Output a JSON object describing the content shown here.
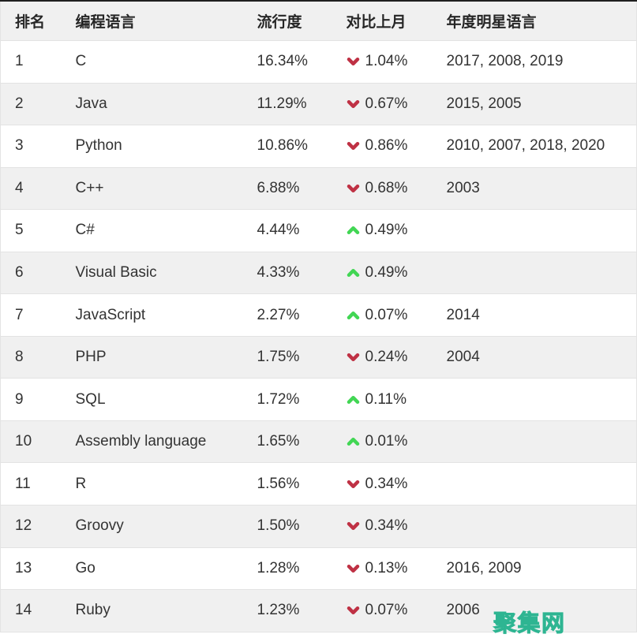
{
  "chart_data": {
    "type": "table",
    "columns": [
      "排名",
      "编程语言",
      "流行度",
      "对比上月",
      "年度明星语言"
    ],
    "rows": [
      {
        "rank": "1",
        "language": "C",
        "popularity": "16.34%",
        "direction": "down",
        "change": "1.04%",
        "star_years": "2017, 2008, 2019"
      },
      {
        "rank": "2",
        "language": "Java",
        "popularity": "11.29%",
        "direction": "down",
        "change": "0.67%",
        "star_years": "2015, 2005"
      },
      {
        "rank": "3",
        "language": "Python",
        "popularity": "10.86%",
        "direction": "down",
        "change": "0.86%",
        "star_years": "2010, 2007, 2018, 2020"
      },
      {
        "rank": "4",
        "language": "C++",
        "popularity": "6.88%",
        "direction": "down",
        "change": "0.68%",
        "star_years": "2003"
      },
      {
        "rank": "5",
        "language": "C#",
        "popularity": "4.44%",
        "direction": "up",
        "change": "0.49%",
        "star_years": ""
      },
      {
        "rank": "6",
        "language": "Visual Basic",
        "popularity": "4.33%",
        "direction": "up",
        "change": "0.49%",
        "star_years": ""
      },
      {
        "rank": "7",
        "language": "JavaScript",
        "popularity": "2.27%",
        "direction": "up",
        "change": "0.07%",
        "star_years": "2014"
      },
      {
        "rank": "8",
        "language": "PHP",
        "popularity": "1.75%",
        "direction": "down",
        "change": "0.24%",
        "star_years": "2004"
      },
      {
        "rank": "9",
        "language": "SQL",
        "popularity": "1.72%",
        "direction": "up",
        "change": "0.11%",
        "star_years": ""
      },
      {
        "rank": "10",
        "language": "Assembly language",
        "popularity": "1.65%",
        "direction": "up",
        "change": "0.01%",
        "star_years": ""
      },
      {
        "rank": "11",
        "language": "R",
        "popularity": "1.56%",
        "direction": "down",
        "change": "0.34%",
        "star_years": ""
      },
      {
        "rank": "12",
        "language": "Groovy",
        "popularity": "1.50%",
        "direction": "down",
        "change": "0.34%",
        "star_years": ""
      },
      {
        "rank": "13",
        "language": "Go",
        "popularity": "1.28%",
        "direction": "down",
        "change": "0.13%",
        "star_years": "2016, 2009"
      },
      {
        "rank": "14",
        "language": "Ruby",
        "popularity": "1.23%",
        "direction": "down",
        "change": "0.07%",
        "star_years": "2006"
      }
    ]
  },
  "watermark": {
    "text": "聚集网"
  },
  "colors": {
    "up_green": "#42d654",
    "down_red": "#bf3144",
    "watermark_teal": "#2eb592",
    "header_bg": "#f0f0f0",
    "row_alt_bg": "#f0f0f0",
    "border": "#e3e3e3",
    "top_border": "#1f1f1f",
    "text": "#333333"
  }
}
